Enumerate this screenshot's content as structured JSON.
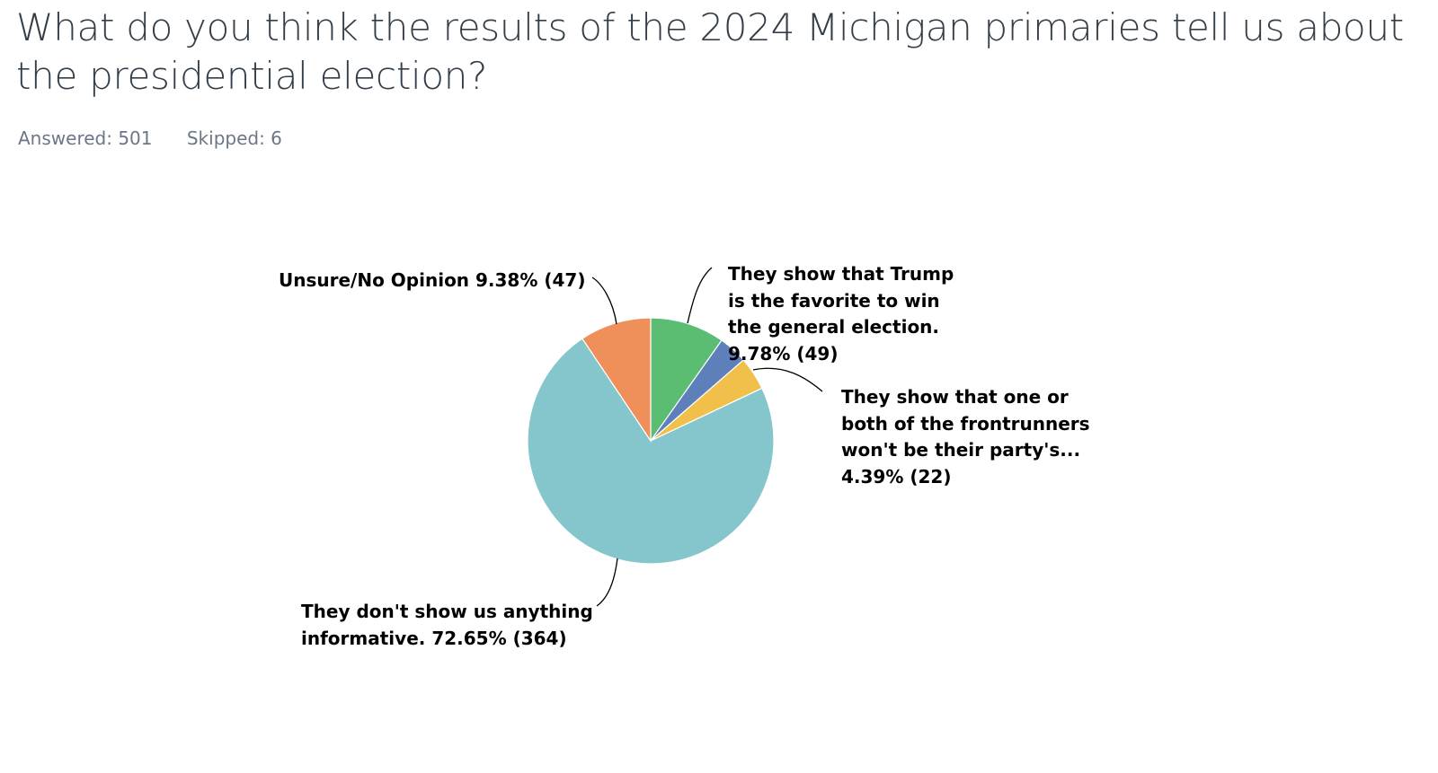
{
  "question": {
    "title": "What do you think the results of the 2024 Michigan primaries tell us about the presidential election?"
  },
  "stats": {
    "answered_label": "Answered: 501",
    "skipped_label": "Skipped: 6"
  },
  "chart_data": {
    "type": "pie",
    "slices": [
      {
        "label": "They show that Trump is the favorite to win the general election.",
        "percent": 9.78,
        "count": 49,
        "display": "They show that Trump is the favorite to win the general election. 9.78% (49)",
        "color": "#5bbd72"
      },
      {
        "label": "They show that one or both of the frontrunners won't be their party's...",
        "percent": 4.39,
        "count": 22,
        "display": "They show that one or both of the frontrunners won't be their party's... 4.39% (22)",
        "color": "#f0c04a"
      },
      {
        "label": "They don't show us anything informative.",
        "percent": 72.65,
        "count": 364,
        "display": "They don't show us anything informative. 72.65% (364)",
        "color": "#84c6cb"
      },
      {
        "label": "Unsure/No Opinion",
        "percent": 9.38,
        "count": 47,
        "display": "Unsure/No Opinion 9.38% (47)",
        "color": "#ef8f5a"
      }
    ],
    "unlabeled_slice": {
      "percent": 3.8,
      "color": "#5d7fba"
    }
  }
}
